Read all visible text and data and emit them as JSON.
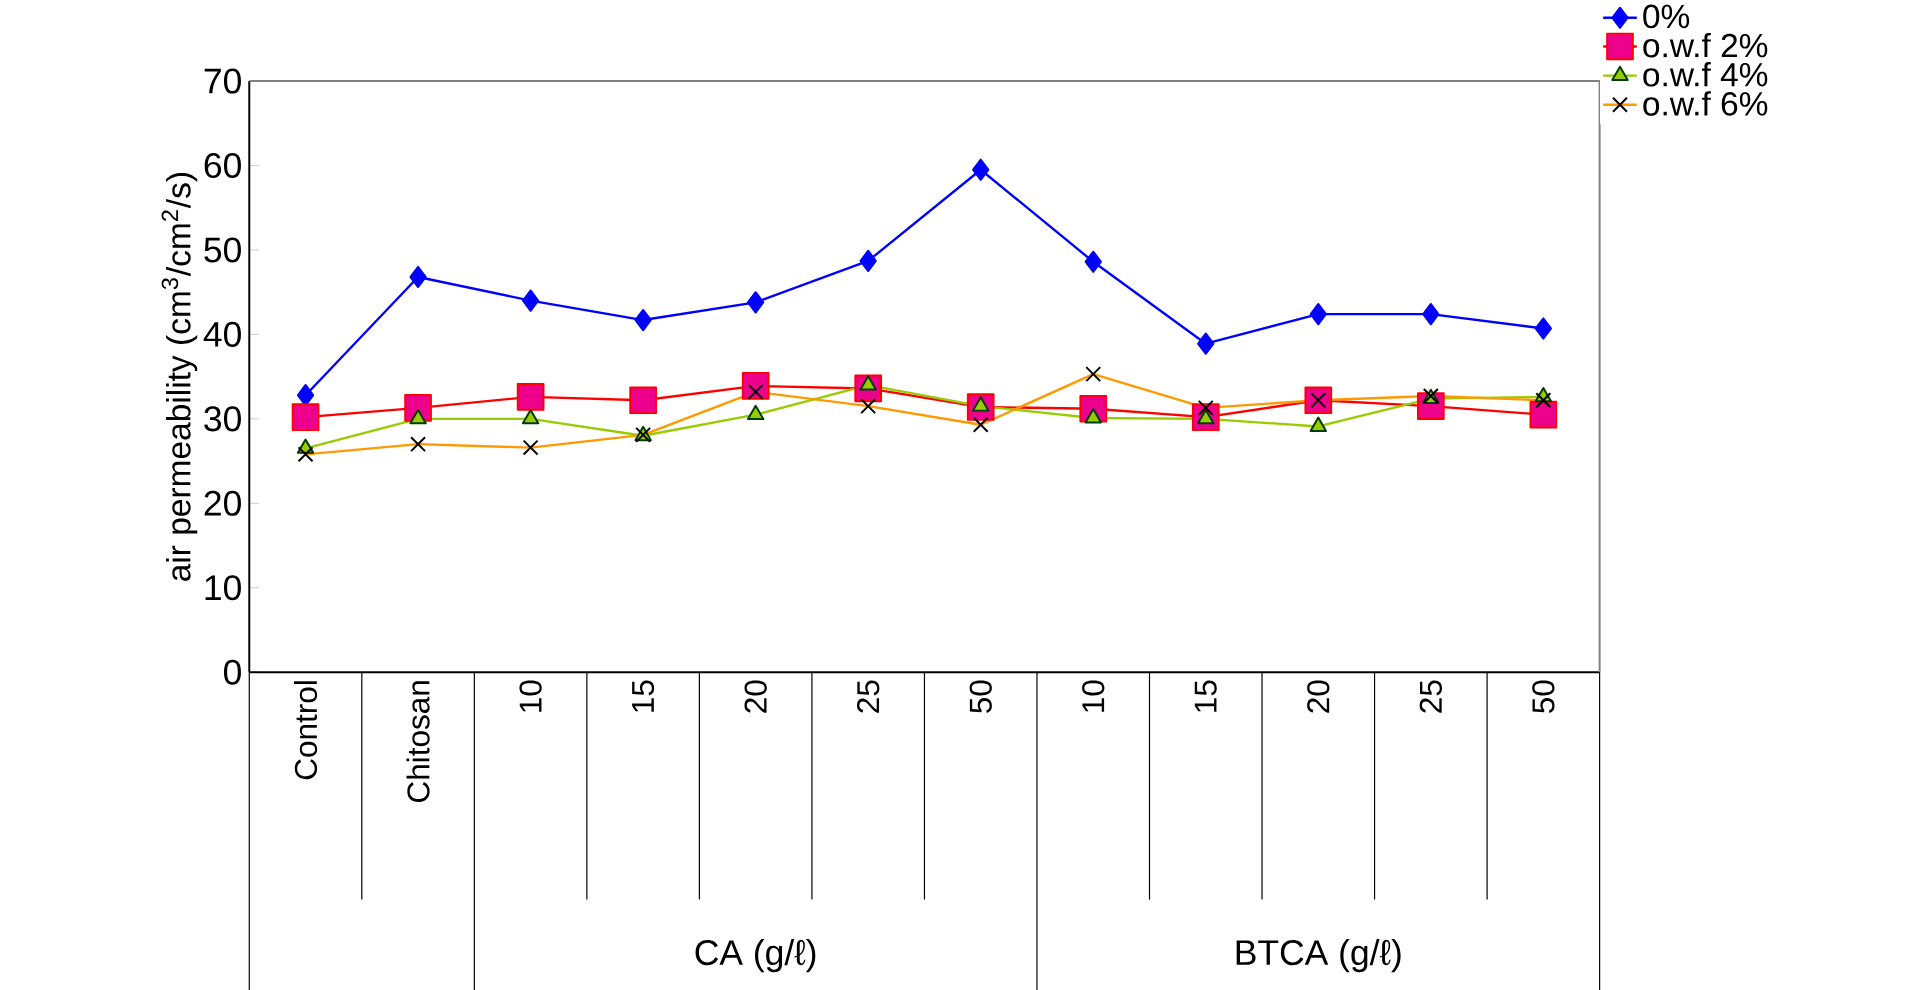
{
  "chart_data": {
    "type": "line",
    "ylabel": "air permeability (cm$^{3}$/cm$^{2}$/s)",
    "categories": [
      "Control",
      "Chitosan",
      "10",
      "15",
      "20",
      "25",
      "50",
      "10",
      "15",
      "20",
      "25",
      "50"
    ],
    "ylim": [
      0,
      70
    ],
    "yticks": [
      0,
      10,
      20,
      30,
      40,
      50,
      60,
      70
    ],
    "legend": "top right",
    "annotations": [
      "CA (g/ℓ)",
      "BTCA (g/ℓ)"
    ],
    "series": [
      {
        "name": "0%",
        "color": "#0000ff",
        "marker": "diamond",
        "values": [
          32.8,
          46.8,
          44.0,
          41.7,
          43.8,
          48.7,
          59.5,
          48.6,
          38.9,
          42.4,
          42.4,
          40.7
        ]
      },
      {
        "name": "o.w.f 2%",
        "color": "#ff0000",
        "marker": "square",
        "values": [
          30.2,
          31.3,
          32.6,
          32.2,
          33.9,
          33.6,
          31.4,
          31.2,
          30.2,
          32.2,
          31.5,
          30.5
        ]
      },
      {
        "name": "o.w.f 4%",
        "color": "#99cc00",
        "marker": "triangle",
        "values": [
          26.5,
          30.0,
          30.0,
          28.0,
          30.5,
          34.0,
          31.5,
          30.1,
          30.0,
          29.1,
          32.4,
          32.6
        ]
      },
      {
        "name": "o.w.f 6%",
        "color": "#ff9900",
        "marker": "cross",
        "values": [
          25.8,
          27.0,
          26.6,
          28.1,
          33.2,
          31.5,
          29.3,
          35.3,
          31.3,
          32.2,
          32.7,
          32.2
        ]
      }
    ]
  }
}
